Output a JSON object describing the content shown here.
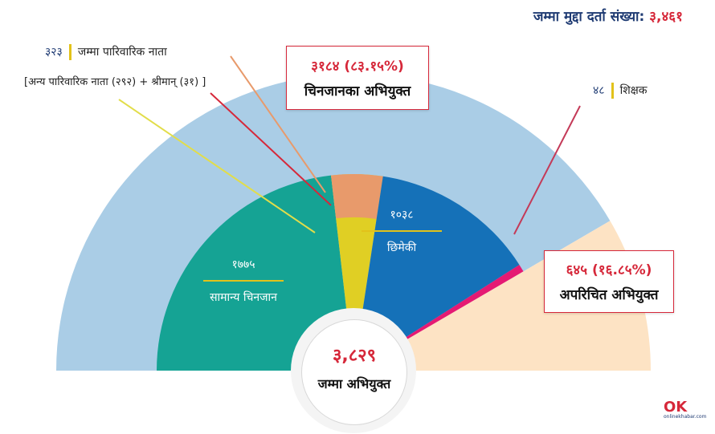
{
  "header": {
    "total_label": "जम्मा मुद्दा दर्ता संख्या:",
    "total_value": "३,४६१"
  },
  "labels": {
    "family_value": "३२३",
    "family_label": "जम्मा पारिवारिक नाता",
    "family_sub": "[अन्य पारिवारिक नाता (२९२) + श्रीमान् (३१) ]",
    "teacher_value": "४८",
    "teacher_label": "शिक्षक",
    "known_box_value": "३१८४ (८३.१५%)",
    "known_box_label": "चिनजानका अभियुक्त",
    "stranger_box_value": "६४५ (१६.८५%)",
    "stranger_box_label": "अपरिचित अभियुक्त",
    "acquaint_value": "१७७५",
    "acquaint_label": "सामान्य चिनजान",
    "neighbor_value": "१०३८",
    "neighbor_label": "छिमेकी",
    "center_value": "३,८२९",
    "center_label": "जम्मा अभियुक्त"
  },
  "logo": {
    "mark": "OK",
    "text": "onlinekhabar.com"
  },
  "colors": {
    "outer_known": "#aacde6",
    "outer_stranger": "#fde3c4",
    "acquaint": "#15a394",
    "family": "#e0cf24",
    "family_top": "#e89a6b",
    "neighbor": "#1571b8",
    "teacher": "#e51a73",
    "accent": "#d6283a",
    "navy": "#1f3b73"
  },
  "chart_data": {
    "type": "pie",
    "title": "जम्मा मुद्दा दर्ता संख्या: ३,४६१",
    "total": 3829,
    "outer": [
      {
        "name": "चिनजानका अभियुक्त",
        "value": 3184,
        "percent": 83.15
      },
      {
        "name": "अपरिचित अभियुक्त",
        "value": 645,
        "percent": 16.85
      }
    ],
    "inner": [
      {
        "name": "सामान्य चिनजान",
        "value": 1775
      },
      {
        "name": "जम्मा पारिवारिक नाता",
        "value": 323,
        "parts": [
          {
            "name": "अन्य पारिवारिक नाता",
            "value": 292
          },
          {
            "name": "श्रीमान्",
            "value": 31
          }
        ]
      },
      {
        "name": "छिमेकी",
        "value": 1038
      },
      {
        "name": "शिक्षक",
        "value": 48
      }
    ]
  }
}
